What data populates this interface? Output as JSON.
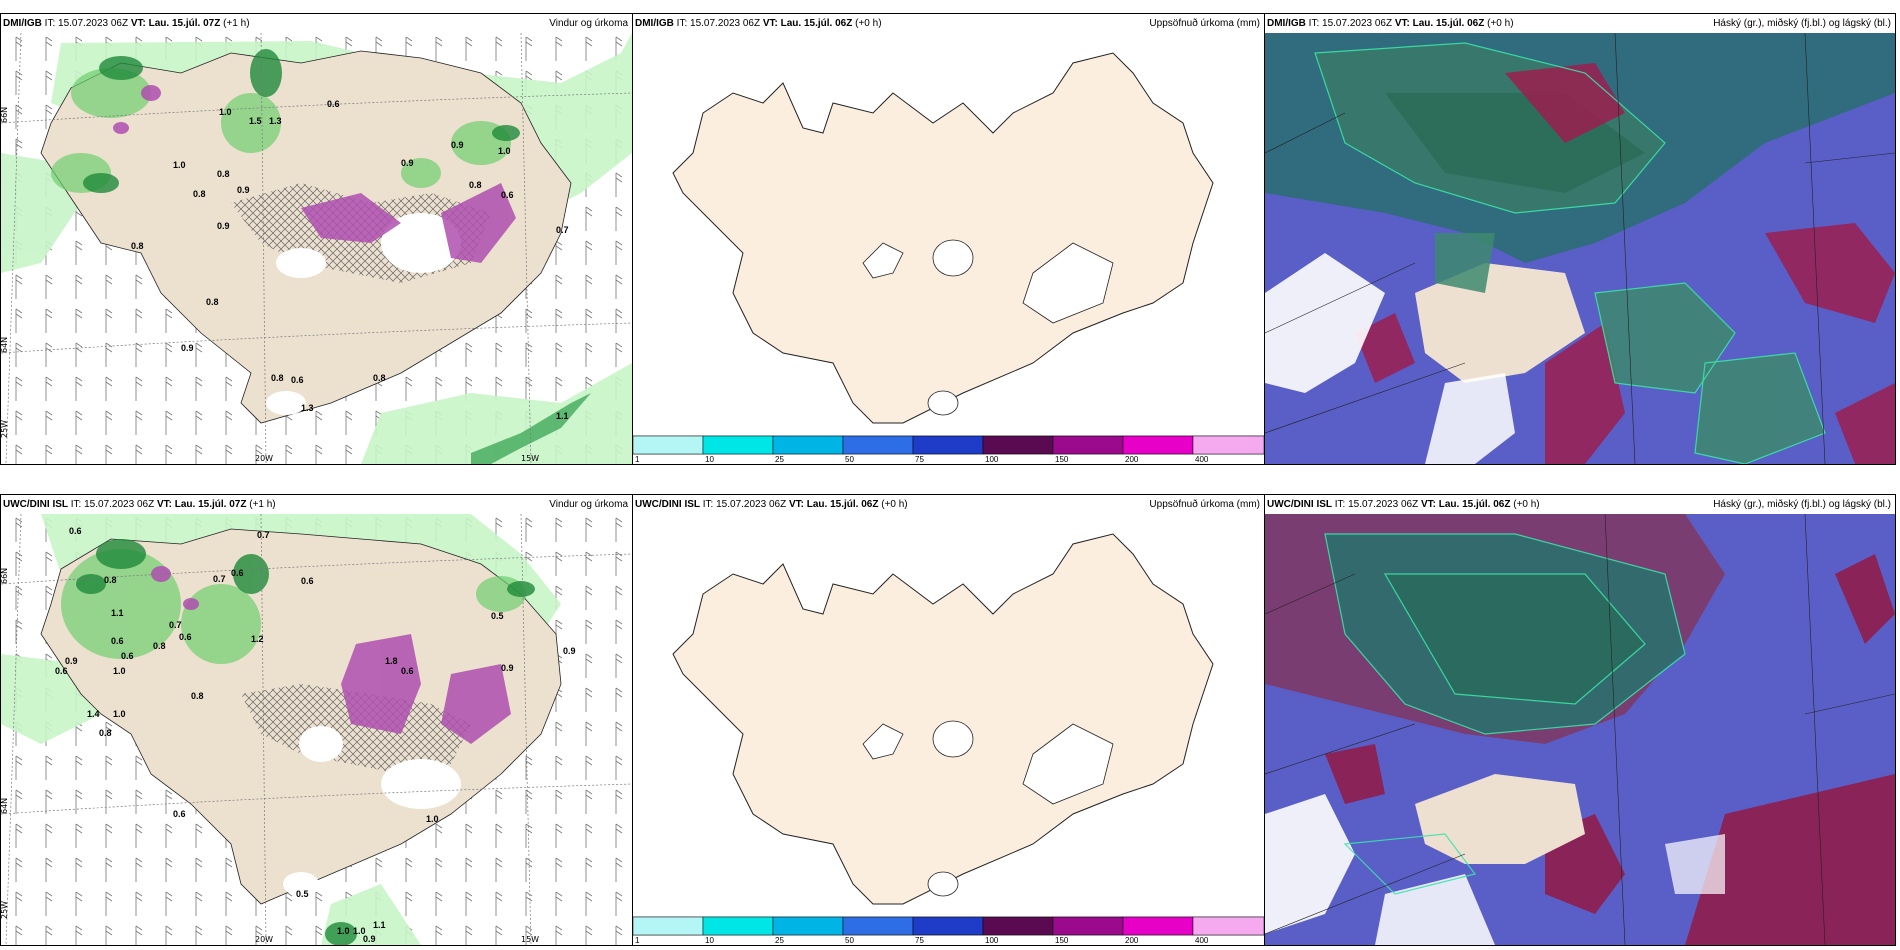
{
  "panels": [
    {
      "source": "DMI/IGB",
      "it_label": "IT:",
      "it_time": "15.07.2023 06Z",
      "vt_label": "VT:",
      "vt_time": "Lau. 15.júl. 07Z",
      "lead": "(+1 h)",
      "product": "Vindur og úrkoma"
    },
    {
      "source": "DMI/IGB",
      "it_label": "IT:",
      "it_time": "15.07.2023 06Z",
      "vt_label": "VT:",
      "vt_time": "Lau. 15.júl. 06Z",
      "lead": "(+0 h)",
      "product": "Uppsöfnuð úrkoma (mm)"
    },
    {
      "source": "DMI/IGB",
      "it_label": "IT:",
      "it_time": "15.07.2023 06Z",
      "vt_label": "VT:",
      "vt_time": "Lau. 15.júl. 06Z",
      "lead": "(+0 h)",
      "product": "Háský (gr.), miðský (fj.bl.) og lágský (bl.)"
    },
    {
      "source": "UWC/DINI ISL",
      "it_label": "IT:",
      "it_time": "15.07.2023 06Z",
      "vt_label": "VT:",
      "vt_time": "Lau. 15.júl. 07Z",
      "lead": "(+1 h)",
      "product": "Vindur og úrkoma"
    },
    {
      "source": "UWC/DINI ISL",
      "it_label": "IT:",
      "it_time": "15.07.2023 06Z",
      "vt_label": "VT:",
      "vt_time": "Lau. 15.júl. 06Z",
      "lead": "(+0 h)",
      "product": "Uppsöfnuð úrkoma (mm)"
    },
    {
      "source": "UWC/DINI ISL",
      "it_label": "IT:",
      "it_time": "15.07.2023 06Z",
      "vt_label": "VT:",
      "vt_time": "Lau. 15.júl. 06Z",
      "lead": "(+0 h)",
      "product": "Háský (gr.), miðský (fj.bl.) og lágský (bl.)"
    }
  ],
  "axes": {
    "lat_66": "66N",
    "lat_64": "64N",
    "lon_25": "25W",
    "lon_20": "20W",
    "lon_15": "15W"
  },
  "colorbar": {
    "labels": [
      "1",
      "10",
      "25",
      "50",
      "75",
      "100",
      "150",
      "200",
      "400"
    ],
    "colors": [
      "#b4f5f5",
      "#00e5e5",
      "#00b4e6",
      "#2d6ee6",
      "#1e3cc8",
      "#5a0a50",
      "#9b0a8c",
      "#e600c8",
      "#f5aaf0"
    ]
  },
  "precip_values_top": [
    "0.6",
    "1.0",
    "1.5",
    "1.3",
    "0.9",
    "1.0",
    "1.0",
    "0.8",
    "0.9",
    "0.8",
    "0.9",
    "0.8",
    "0.9",
    "0.8",
    "0.9",
    "0.8",
    "0.6",
    "0.8",
    "0.6",
    "1.3",
    "1.1",
    "0.7",
    "0.8"
  ],
  "precip_values_bottom": [
    "0.6",
    "0.7",
    "0.6",
    "0.7",
    "0.8",
    "0.6",
    "0.9",
    "1.0",
    "1.1",
    "0.6",
    "0.6",
    "0.8",
    "0.7",
    "0.6",
    "1.2",
    "0.6",
    "0.9",
    "0.8",
    "1.4",
    "1.0",
    "0.8",
    "1.8",
    "0.6",
    "0.5",
    "0.6",
    "0.9",
    "1.0",
    "0.5",
    "1.0",
    "1.0",
    "0.9",
    "1.1"
  ]
}
